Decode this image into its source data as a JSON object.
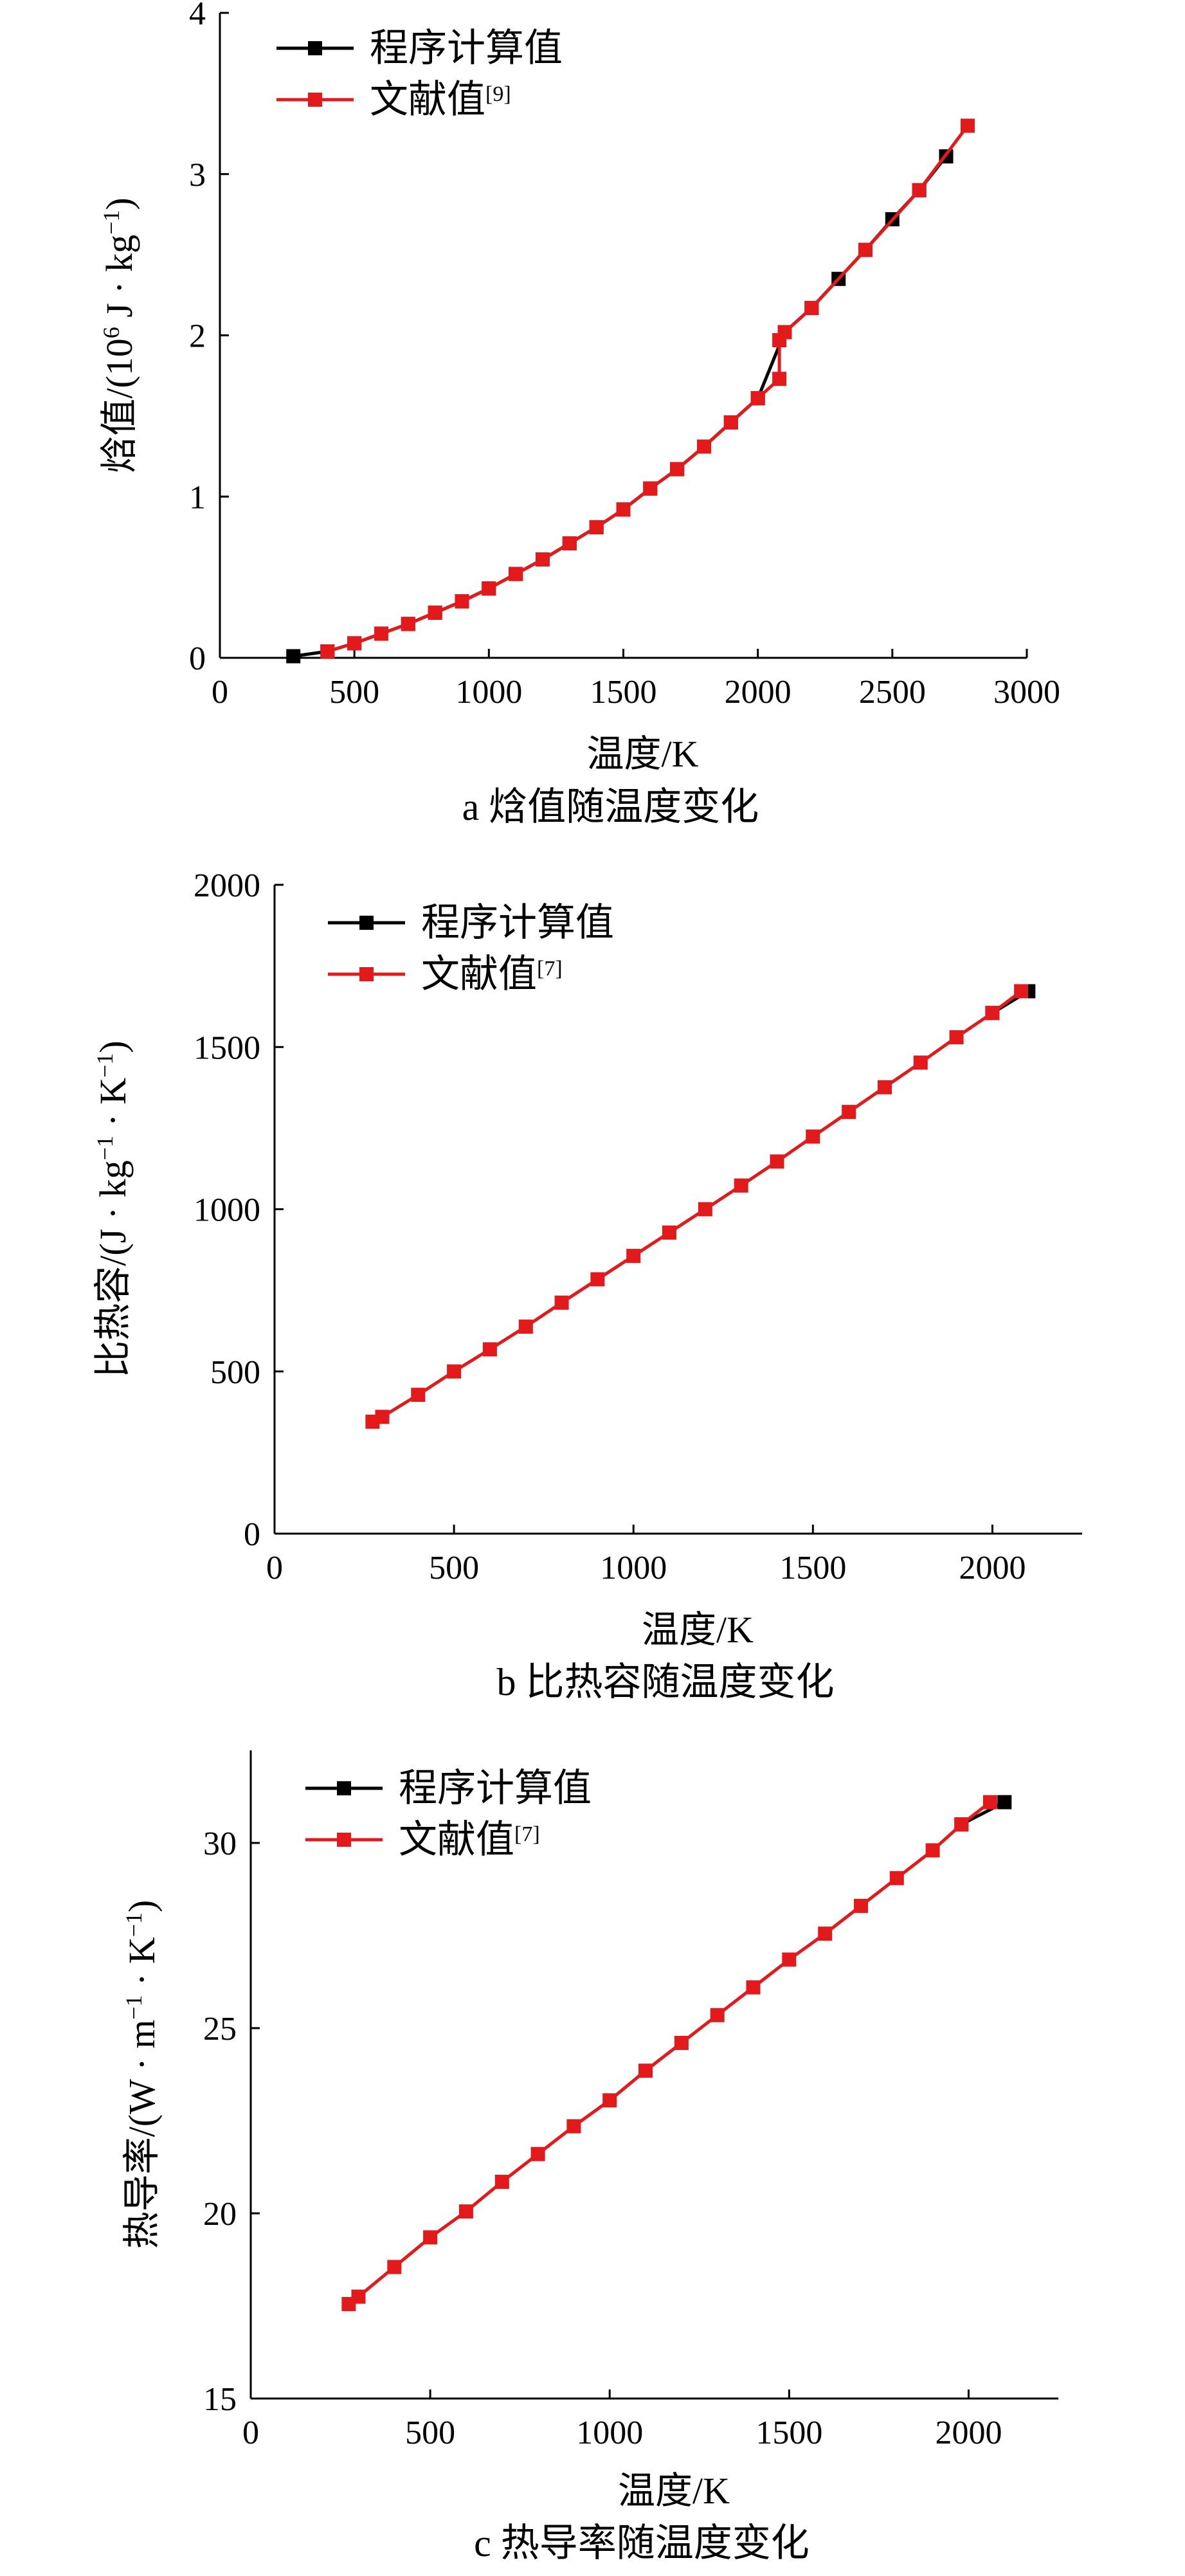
{
  "chart_data": [
    {
      "type": "line",
      "caption": "a  焓值随温度变化",
      "xlabel": "温度/K",
      "ylabel_main": "焓值/(10",
      "ylabel_sup": "6",
      "ylabel_mid": " J · kg",
      "ylabel_sup2": "−1",
      "ylabel_tail": ")",
      "xlim": [
        0,
        3000
      ],
      "ylim": [
        0,
        4
      ],
      "xticks": [
        "0",
        "500",
        "1000",
        "1500",
        "2000",
        "2500",
        "3000"
      ],
      "yticks": [
        "0",
        "1",
        "2",
        "3",
        "4"
      ],
      "legend": [
        {
          "name": "程序计算值",
          "sup": "",
          "color": "#000000"
        },
        {
          "name": "文献值",
          "sup": "[9]",
          "color": "#e31a1c"
        }
      ],
      "series": [
        {
          "name": "程序计算值",
          "color": "#000000",
          "x": [
            273,
            400,
            500,
            600,
            700,
            800,
            900,
            1000,
            1100,
            1200,
            1300,
            1400,
            1500,
            1600,
            1700,
            1800,
            1900,
            2000,
            2100,
            2200,
            2300,
            2400,
            2500,
            2600,
            2700
          ],
          "y": [
            0.01,
            0.04,
            0.09,
            0.15,
            0.21,
            0.28,
            0.35,
            0.43,
            0.52,
            0.61,
            0.71,
            0.81,
            0.92,
            1.05,
            1.17,
            1.31,
            1.46,
            1.61,
            2.02,
            2.17,
            2.35,
            2.53,
            2.72,
            2.9,
            3.11
          ]
        },
        {
          "name": "文献值",
          "color": "#e31a1c",
          "x": [
            400,
            500,
            600,
            700,
            800,
            900,
            1000,
            1100,
            1200,
            1300,
            1400,
            1500,
            1600,
            1700,
            1800,
            1900,
            2000,
            2080,
            2080,
            2100,
            2200,
            2400,
            2600,
            2780
          ],
          "y": [
            0.04,
            0.09,
            0.15,
            0.21,
            0.28,
            0.35,
            0.43,
            0.52,
            0.61,
            0.71,
            0.81,
            0.92,
            1.05,
            1.17,
            1.31,
            1.46,
            1.61,
            1.73,
            1.97,
            2.02,
            2.17,
            2.53,
            2.9,
            3.3
          ]
        }
      ]
    },
    {
      "type": "line",
      "caption": "b  比热容随温度变化",
      "xlabel": "温度/K",
      "ylabel_main": "比热容/(J · kg",
      "ylabel_sup": "−1",
      "ylabel_mid": " · K",
      "ylabel_sup2": "−1",
      "ylabel_tail": ")",
      "xlim": [
        0,
        2250
      ],
      "ylim": [
        0,
        2000
      ],
      "xticks": [
        "0",
        "500",
        "1000",
        "1500",
        "2000"
      ],
      "yticks": [
        "0",
        "500",
        "1000",
        "1500",
        "2000"
      ],
      "legend": [
        {
          "name": "程序计算值",
          "sup": "",
          "color": "#000000"
        },
        {
          "name": "文献值",
          "sup": "[7]",
          "color": "#e31a1c"
        }
      ],
      "series": [
        {
          "name": "程序计算值",
          "color": "#000000",
          "x": [
            2000,
            2100
          ],
          "y": [
            1605,
            1672
          ]
        },
        {
          "name": "文献值",
          "color": "#e31a1c",
          "x": [
            273,
            300,
            400,
            500,
            600,
            700,
            800,
            900,
            1000,
            1100,
            1200,
            1300,
            1400,
            1500,
            1600,
            1700,
            1800,
            1900,
            2000,
            2080
          ],
          "y": [
            345,
            360,
            428,
            500,
            568,
            638,
            712,
            784,
            856,
            928,
            1000,
            1073,
            1147,
            1224,
            1300,
            1376,
            1452,
            1530,
            1605,
            1672
          ]
        }
      ]
    },
    {
      "type": "line",
      "caption": "c  热导率随温度变化",
      "xlabel": "温度/K",
      "ylabel_main": "热导率/(W · m",
      "ylabel_sup": "−1",
      "ylabel_mid": " · K",
      "ylabel_sup2": "−1",
      "ylabel_tail": ")",
      "xlim": [
        0,
        2250
      ],
      "ylim": [
        15,
        32.5
      ],
      "xticks": [
        "0",
        "500",
        "1000",
        "1500",
        "2000"
      ],
      "yticks": [
        "15",
        "20",
        "25",
        "30"
      ],
      "legend": [
        {
          "name": "程序计算值",
          "sup": "",
          "color": "#000000"
        },
        {
          "name": "文献值",
          "sup": "[7]",
          "color": "#e31a1c"
        }
      ],
      "series": [
        {
          "name": "程序计算值",
          "color": "#000000",
          "x": [
            1980,
            2100
          ],
          "y": [
            30.5,
            31.1
          ]
        },
        {
          "name": "文献值",
          "color": "#e31a1c",
          "x": [
            273,
            300,
            400,
            500,
            600,
            700,
            800,
            900,
            1000,
            1100,
            1200,
            1300,
            1400,
            1500,
            1600,
            1700,
            1800,
            1900,
            1980,
            2060
          ],
          "y": [
            17.55,
            17.75,
            18.55,
            19.35,
            20.05,
            20.85,
            21.6,
            22.35,
            23.05,
            23.85,
            24.6,
            25.35,
            26.1,
            26.85,
            27.55,
            28.3,
            29.05,
            29.8,
            30.5,
            31.1
          ]
        }
      ]
    }
  ]
}
